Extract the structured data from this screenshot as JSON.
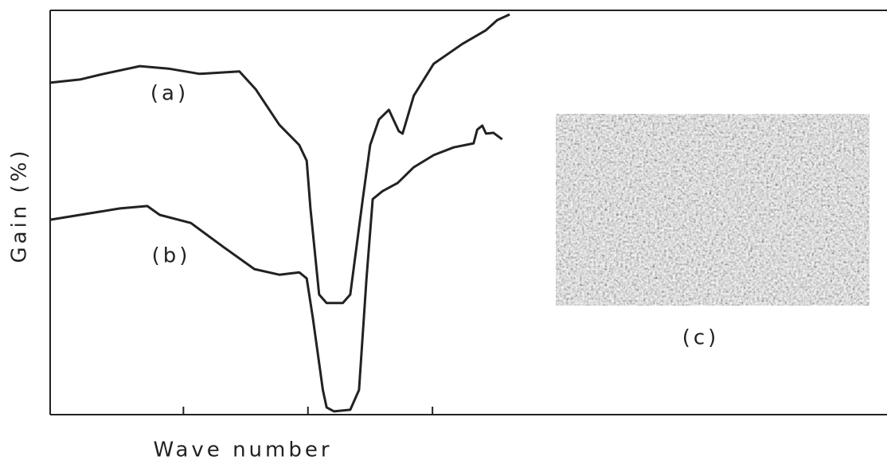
{
  "chart_data": {
    "type": "line",
    "x_label": "Wave number",
    "y_label": "Gain (%)",
    "xlim": [
      -0.07,
      6.65
    ],
    "xticks": [
      1,
      2,
      3
    ],
    "ylim": [
      0,
      100
    ],
    "series": [
      {
        "name": "(a)",
        "color": "#222222",
        "x": [
          -0.07,
          0.17,
          0.36,
          0.65,
          0.88,
          1.13,
          1.45,
          1.58,
          1.77,
          1.93,
          1.99,
          2.02,
          2.09,
          2.15,
          2.28,
          2.34,
          2.44,
          2.5,
          2.57,
          2.65,
          2.73,
          2.76,
          2.85,
          3.01,
          3.24,
          3.43,
          3.52,
          3.62
        ],
        "values": [
          82.1,
          82.9,
          84.3,
          86.2,
          85.6,
          84.3,
          84.9,
          80.5,
          71.7,
          66.7,
          62.8,
          51.0,
          29.7,
          27.6,
          27.6,
          29.7,
          53.3,
          66.7,
          73.0,
          75.4,
          70.1,
          69.5,
          78.9,
          86.8,
          91.7,
          95.1,
          97.6,
          99.0
        ]
      },
      {
        "name": "(b)",
        "color": "#222222",
        "x": [
          -0.07,
          0.17,
          0.49,
          0.71,
          0.81,
          1.06,
          1.32,
          1.57,
          1.77,
          1.93,
          1.99,
          2.04,
          2.12,
          2.15,
          2.21,
          2.34,
          2.41,
          2.47,
          2.52,
          2.6,
          2.72,
          2.85,
          3.01,
          3.17,
          3.33,
          3.36,
          3.4,
          3.43,
          3.49,
          3.56
        ],
        "values": [
          48.2,
          49.4,
          51.0,
          51.6,
          49.4,
          47.4,
          41.5,
          36.0,
          34.6,
          35.2,
          33.7,
          23.8,
          6.1,
          1.8,
          0.8,
          1.2,
          6.1,
          33.7,
          53.3,
          55.3,
          57.3,
          61.2,
          64.2,
          66.1,
          67.1,
          70.5,
          71.5,
          69.5,
          69.7,
          68.1
        ]
      }
    ],
    "inset": {
      "label": "(c)"
    }
  }
}
